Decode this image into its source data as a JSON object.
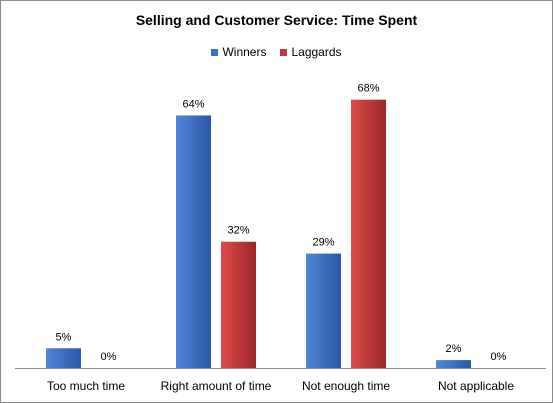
{
  "chart_data": {
    "type": "bar",
    "title": "Selling and Customer Service:  Time Spent",
    "xlabel": "",
    "ylabel": "",
    "categories": [
      "Too much time",
      "Right amount of time",
      "Not enough time",
      "Not applicable"
    ],
    "series": [
      {
        "name": "Winners",
        "values": [
          5,
          64,
          29,
          2
        ],
        "labels": [
          "5%",
          "64%",
          "29%",
          "2%"
        ],
        "color": "#3a6fc4"
      },
      {
        "name": "Laggards",
        "values": [
          0,
          32,
          68,
          0
        ],
        "labels": [
          "0%",
          "32%",
          "68%",
          "0%"
        ],
        "color": "#c0383a"
      }
    ],
    "ylim": [
      0,
      70
    ],
    "grid": false,
    "legend_position": "top"
  }
}
